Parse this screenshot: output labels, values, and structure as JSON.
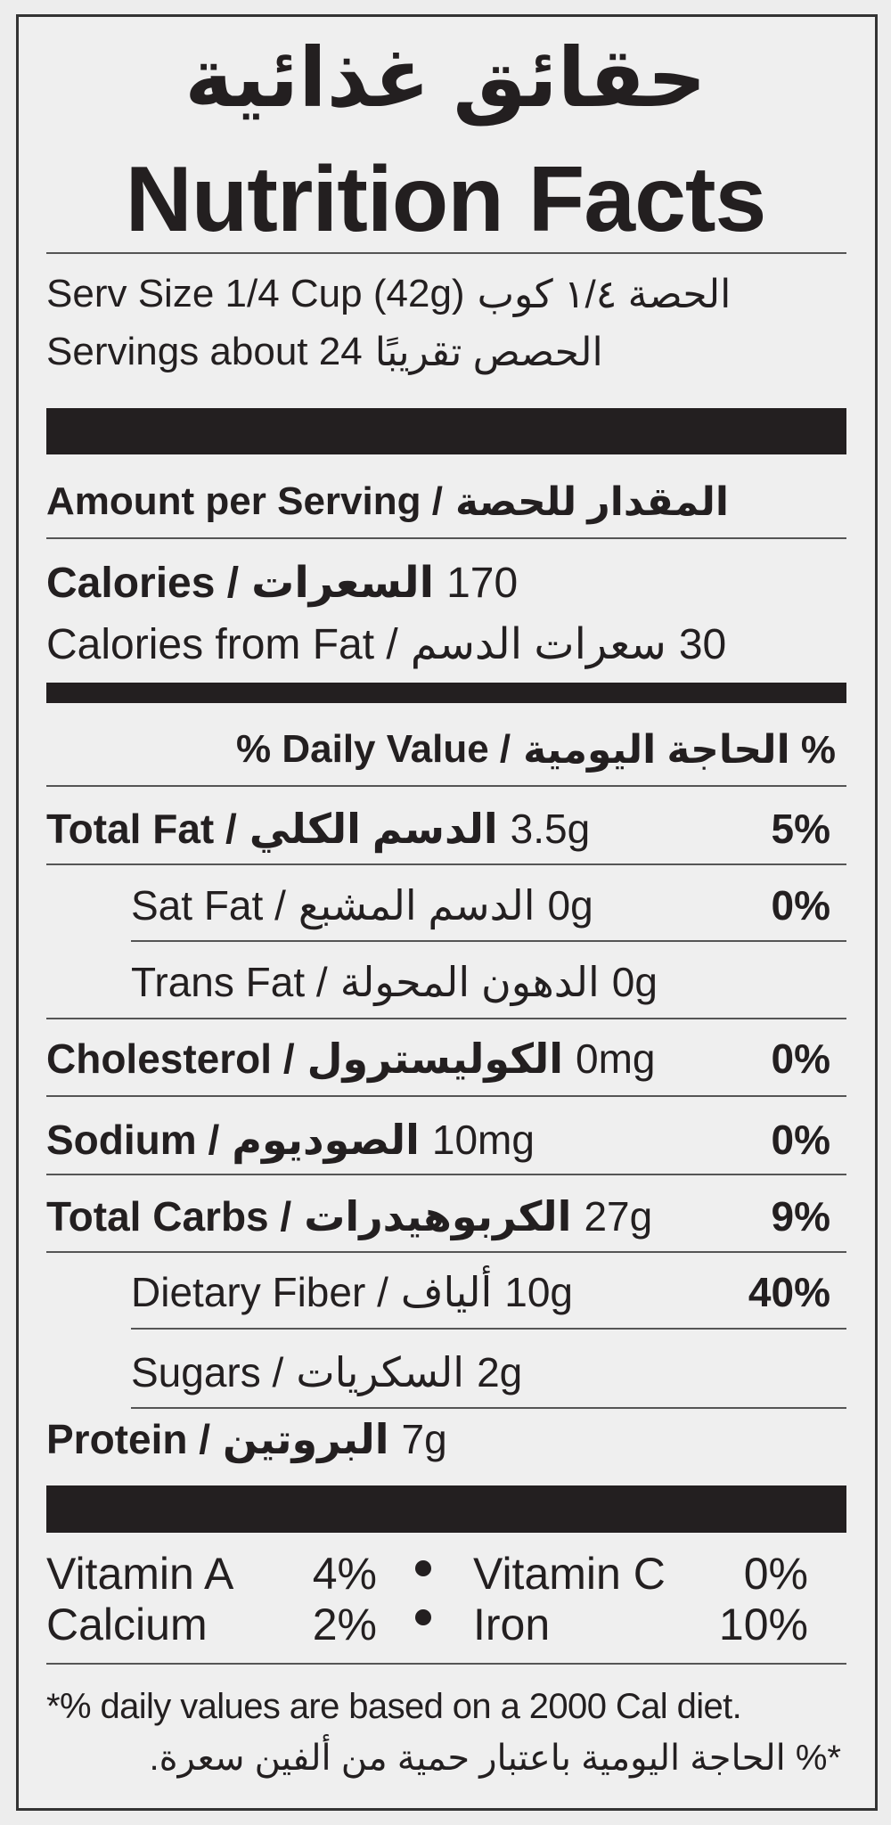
{
  "title_ar": "حقائق غذائية",
  "title_en": "Nutrition Facts",
  "serving_size": {
    "en": "Serv Size 1/4 Cup (42g)",
    "ar": "الحصة ١/٤ كوب"
  },
  "servings": {
    "en": "Servings about 24",
    "ar": "الحصص تقريبًا"
  },
  "amount_per_serving": {
    "en": "Amount per Serving /",
    "ar": "المقدار للحصة"
  },
  "calories": {
    "en": "Calories /",
    "ar": "السعرات",
    "value": "170"
  },
  "calories_from_fat": {
    "en": "Calories from Fat /",
    "ar": "سعرات الدسم",
    "value": "30"
  },
  "daily_value_header": {
    "en": "% Daily Value /",
    "ar": "% الحاجة اليومية"
  },
  "nutrients": [
    {
      "en": "Total Fat /",
      "ar": "الدسم الكلي",
      "amount": "3.5g",
      "dv": "5%"
    },
    {
      "en": "Sat Fat /",
      "ar": "الدسم المشبع",
      "amount": "0g",
      "dv": "0%"
    },
    {
      "en": "Trans Fat /",
      "ar": "الدهون المحولة",
      "amount": "0g"
    },
    {
      "en": "Cholesterol /",
      "ar": "الكوليسترول",
      "amount": "0mg",
      "dv": "0%"
    },
    {
      "en": "Sodium /",
      "ar": "الصوديوم",
      "amount": "10mg",
      "dv": "0%"
    },
    {
      "en": "Total Carbs /",
      "ar": "الكربوهيدرات",
      "amount": "27g",
      "dv": "9%"
    },
    {
      "en": "Dietary Fiber /",
      "ar": "ألياف",
      "amount": "10g",
      "dv": "40%"
    },
    {
      "en": "Sugars /",
      "ar": "السكريات",
      "amount": "2g"
    },
    {
      "en": "Protein /",
      "ar": "البروتين",
      "amount": "7g"
    }
  ],
  "vitamins": [
    {
      "name": "Vitamin A",
      "value": "4%"
    },
    {
      "name": "Vitamin C",
      "value": "0%"
    },
    {
      "name": "Calcium",
      "value": "2%"
    },
    {
      "name": "Iron",
      "value": "10%"
    }
  ],
  "footnote_en": "*% daily values are based on a 2000 Cal diet.",
  "footnote_ar": "*% الحاجة اليومية باعتبار حمية من ألفين سعرة."
}
